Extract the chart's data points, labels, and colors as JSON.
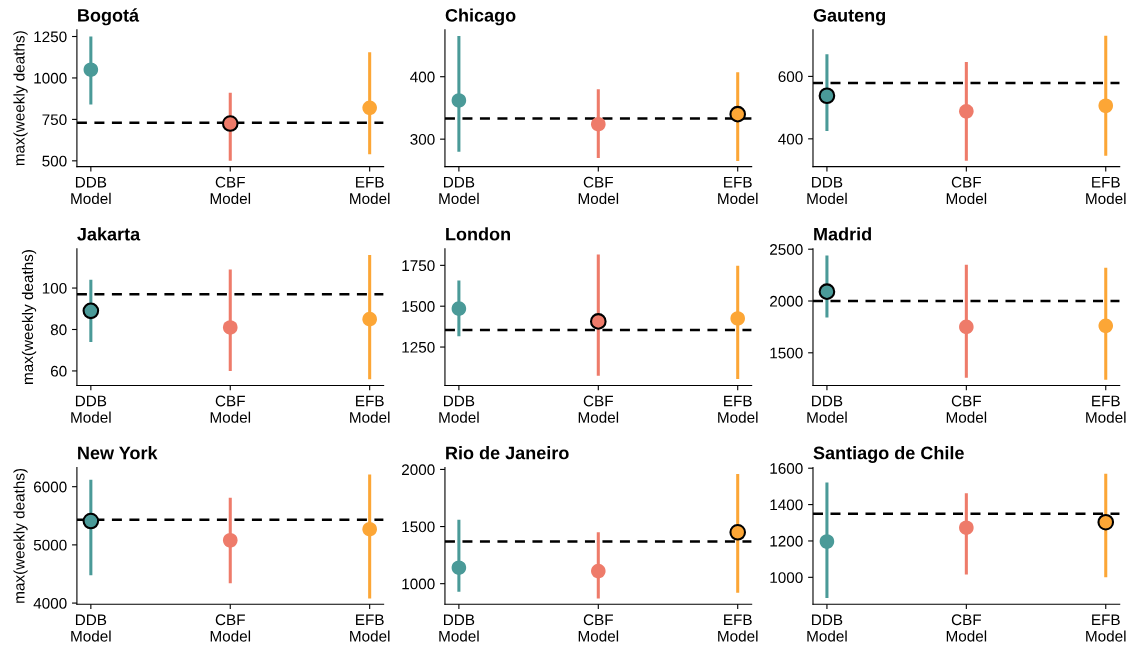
{
  "chart_data": [
    {
      "type": "scatter",
      "title": "Bogotá",
      "ylabel": "max(weekly deaths)",
      "categories": [
        "DDB\nModel",
        "CBF\nModel",
        "EFB\nModel"
      ],
      "series": [
        {
          "values": [
            1050,
            null,
            820
          ],
          "errors": [
            [
              840,
              1250
            ],
            null,
            [
              540,
              1155
            ]
          ],
          "colors": [
            "#4a9a98",
            "#ee7b6a",
            "#fca636"
          ]
        },
        {
          "values": [
            null,
            725,
            null
          ],
          "errors": [
            null,
            [
              500,
              910
            ],
            null
          ],
          "colors": [
            "#4a9a98",
            "#ee7b6a",
            "#fca636"
          ]
        }
      ],
      "ylim": [
        465,
        1290
      ],
      "yticks": [
        500,
        750,
        1000,
        1250
      ],
      "ref_lines": [
        {
          "axis": "y",
          "value": 730,
          "color": "#000000",
          "line_style": "dashed"
        }
      ],
      "marker": "circle"
    },
    {
      "type": "scatter",
      "title": "Chicago",
      "categories": [
        "DDB\nModel",
        "CBF\nModel",
        "EFB\nModel"
      ],
      "series": [
        {
          "values": [
            362,
            324,
            null
          ],
          "errors": [
            [
              280,
              465
            ],
            [
              270,
              380
            ],
            null
          ],
          "colors": [
            "#4a9a98",
            "#ee7b6a",
            "#fca636"
          ]
        },
        {
          "values": [
            null,
            null,
            340
          ],
          "errors": [
            null,
            null,
            [
              265,
              407
            ]
          ],
          "colors": [
            "#4a9a98",
            "#ee7b6a",
            "#fca636"
          ]
        }
      ],
      "ylim": [
        256,
        475
      ],
      "yticks": [
        300,
        400
      ],
      "ref_lines": [
        {
          "axis": "y",
          "value": 333,
          "color": "#000000",
          "line_style": "dashed"
        }
      ],
      "marker": "circle"
    },
    {
      "type": "scatter",
      "title": "Gauteng",
      "categories": [
        "DDB\nModel",
        "CBF\nModel",
        "EFB\nModel"
      ],
      "series": [
        {
          "values": [
            null,
            488,
            506
          ],
          "errors": [
            null,
            [
              330,
              646
            ],
            [
              346,
              730
            ]
          ],
          "colors": [
            "#4a9a98",
            "#ee7b6a",
            "#fca636"
          ]
        },
        {
          "values": [
            538,
            null,
            null
          ],
          "errors": [
            [
              425,
              671
            ],
            null,
            null
          ],
          "colors": [
            "#4a9a98",
            "#ee7b6a",
            "#fca636"
          ]
        }
      ],
      "ylim": [
        311,
        749
      ],
      "yticks": [
        400,
        600
      ],
      "ref_lines": [
        {
          "axis": "y",
          "value": 579,
          "color": "#000000",
          "line_style": "dashed"
        }
      ],
      "marker": "circle"
    },
    {
      "type": "scatter",
      "title": "Jakarta",
      "ylabel": "max(weekly deaths)",
      "categories": [
        "DDB\nModel",
        "CBF\nModel",
        "EFB\nModel"
      ],
      "series": [
        {
          "values": [
            null,
            81,
            85
          ],
          "errors": [
            null,
            [
              60,
              109
            ],
            [
              56,
              116
            ]
          ],
          "colors": [
            "#4a9a98",
            "#ee7b6a",
            "#fca636"
          ]
        },
        {
          "values": [
            89,
            null,
            null
          ],
          "errors": [
            [
              74,
              104
            ],
            null,
            null
          ],
          "colors": [
            "#4a9a98",
            "#ee7b6a",
            "#fca636"
          ]
        }
      ],
      "ylim": [
        53,
        119
      ],
      "yticks": [
        60,
        80,
        100
      ],
      "ref_lines": [
        {
          "axis": "y",
          "value": 97,
          "color": "#000000",
          "line_style": "dashed"
        }
      ],
      "marker": "circle"
    },
    {
      "type": "scatter",
      "title": "London",
      "categories": [
        "DDB\nModel",
        "CBF\nModel",
        "EFB\nModel"
      ],
      "series": [
        {
          "values": [
            1485,
            null,
            1425
          ],
          "errors": [
            [
              1316,
              1657
            ],
            null,
            [
              1054,
              1747
            ]
          ],
          "colors": [
            "#4a9a98",
            "#ee7b6a",
            "#fca636"
          ]
        },
        {
          "values": [
            null,
            1407,
            null
          ],
          "errors": [
            null,
            [
              1075,
              1816
            ],
            null
          ],
          "colors": [
            "#4a9a98",
            "#ee7b6a",
            "#fca636"
          ]
        }
      ],
      "ylim": [
        1015,
        1852
      ],
      "yticks": [
        1250,
        1500,
        1750
      ],
      "ref_lines": [
        {
          "axis": "y",
          "value": 1355,
          "color": "#000000",
          "line_style": "dashed"
        }
      ],
      "marker": "circle"
    },
    {
      "type": "scatter",
      "title": "Madrid",
      "categories": [
        "DDB\nModel",
        "CBF\nModel",
        "EFB\nModel"
      ],
      "series": [
        {
          "values": [
            null,
            1750,
            1760
          ],
          "errors": [
            null,
            [
              1260,
              2350
            ],
            [
              1240,
              2320
            ]
          ],
          "colors": [
            "#4a9a98",
            "#ee7b6a",
            "#fca636"
          ]
        },
        {
          "values": [
            2090,
            null,
            null
          ],
          "errors": [
            [
              1840,
              2440
            ],
            null,
            null
          ],
          "colors": [
            "#4a9a98",
            "#ee7b6a",
            "#fca636"
          ]
        }
      ],
      "ylim": [
        1185,
        2505
      ],
      "yticks": [
        1500,
        2000,
        2500
      ],
      "ref_lines": [
        {
          "axis": "y",
          "value": 2000,
          "color": "#000000",
          "line_style": "dashed"
        }
      ],
      "marker": "circle"
    },
    {
      "type": "scatter",
      "title": "New York",
      "ylabel": "max(weekly deaths)",
      "categories": [
        "DDB\nModel",
        "CBF\nModel",
        "EFB\nModel"
      ],
      "series": [
        {
          "values": [
            null,
            5080,
            5270
          ],
          "errors": [
            null,
            [
              4340,
              5810
            ],
            [
              4080,
              6210
            ]
          ],
          "colors": [
            "#4a9a98",
            "#ee7b6a",
            "#fca636"
          ]
        },
        {
          "values": [
            5410,
            null,
            null
          ],
          "errors": [
            [
              4480,
              6120
            ],
            null,
            null
          ],
          "colors": [
            "#4a9a98",
            "#ee7b6a",
            "#fca636"
          ]
        }
      ],
      "ylim": [
        3980,
        6330
      ],
      "yticks": [
        4000,
        5000,
        6000
      ],
      "ref_lines": [
        {
          "axis": "y",
          "value": 5430,
          "color": "#000000",
          "line_style": "dashed"
        }
      ],
      "marker": "circle"
    },
    {
      "type": "scatter",
      "title": "Rio de Janeiro",
      "categories": [
        "DDB\nModel",
        "CBF\nModel",
        "EFB\nModel"
      ],
      "series": [
        {
          "values": [
            1140,
            1110,
            null
          ],
          "errors": [
            [
              930,
              1560
            ],
            [
              870,
              1450
            ],
            null
          ],
          "colors": [
            "#4a9a98",
            "#ee7b6a",
            "#fca636"
          ]
        },
        {
          "values": [
            null,
            null,
            1450
          ],
          "errors": [
            null,
            null,
            [
              920,
              1960
            ]
          ],
          "colors": [
            "#4a9a98",
            "#ee7b6a",
            "#fca636"
          ]
        }
      ],
      "ylim": [
        820,
        2017
      ],
      "yticks": [
        1000,
        1500,
        2000
      ],
      "ref_lines": [
        {
          "axis": "y",
          "value": 1370,
          "color": "#000000",
          "line_style": "dashed"
        }
      ],
      "marker": "circle"
    },
    {
      "type": "scatter",
      "title": "Santiago de Chile",
      "categories": [
        "DDB\nModel",
        "CBF\nModel",
        "EFB\nModel"
      ],
      "series": [
        {
          "values": [
            1197,
            1273,
            null
          ],
          "errors": [
            [
              886,
              1521
            ],
            [
              1015,
              1462
            ],
            null
          ],
          "colors": [
            "#4a9a98",
            "#ee7b6a",
            "#fca636"
          ]
        },
        {
          "values": [
            null,
            null,
            1303
          ],
          "errors": [
            null,
            null,
            [
              1000,
              1569
            ]
          ],
          "colors": [
            "#4a9a98",
            "#ee7b6a",
            "#fca636"
          ]
        }
      ],
      "ylim": [
        852,
        1604
      ],
      "yticks": [
        1000,
        1200,
        1400,
        1600
      ],
      "ref_lines": [
        {
          "axis": "y",
          "value": 1349,
          "color": "#000000",
          "line_style": "dashed"
        }
      ],
      "marker": "circle"
    }
  ]
}
